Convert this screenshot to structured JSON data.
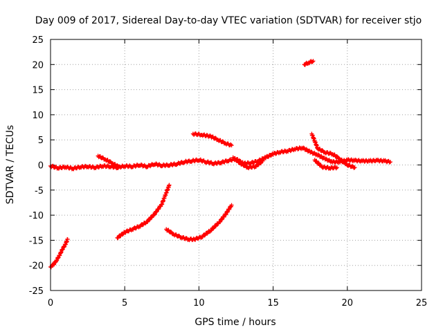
{
  "chart_data": {
    "type": "scatter",
    "title": "Day 009 of 2017, Sidereal Day-to-day VTEC variation (SDTVAR) for receiver stjo",
    "xlabel": "GPS time / hours",
    "ylabel": "SDTVAR / TECUs",
    "xlim": [
      0,
      25
    ],
    "ylim": [
      -25,
      25
    ],
    "xticks": [
      0,
      5,
      10,
      15,
      20,
      25
    ],
    "yticks": [
      -25,
      -20,
      -15,
      -10,
      -5,
      0,
      5,
      10,
      15,
      20,
      25
    ],
    "grid": true,
    "marker": "plus",
    "color": "#ff0000",
    "series": [
      {
        "points": [
          [
            0.0,
            -0.2
          ],
          [
            0.5,
            -0.6
          ],
          [
            1.0,
            -0.4
          ],
          [
            1.5,
            -0.7
          ],
          [
            2.0,
            -0.4
          ],
          [
            2.5,
            -0.3
          ],
          [
            3.0,
            -0.5
          ],
          [
            3.5,
            -0.2
          ],
          [
            4.0,
            -0.3
          ],
          [
            4.5,
            -0.5
          ],
          [
            5.0,
            -0.2
          ],
          [
            5.5,
            -0.3
          ],
          [
            6.0,
            0.0
          ],
          [
            6.5,
            -0.3
          ],
          [
            7.0,
            0.2
          ],
          [
            7.5,
            -0.1
          ],
          [
            8.0,
            0.0
          ],
          [
            8.5,
            0.2
          ],
          [
            9.0,
            0.6
          ],
          [
            9.5,
            0.8
          ],
          [
            10.0,
            1.0
          ],
          [
            10.5,
            0.6
          ],
          [
            11.0,
            0.3
          ],
          [
            11.5,
            0.5
          ],
          [
            12.0,
            0.9
          ],
          [
            12.5,
            1.2
          ],
          [
            13.0,
            0.3
          ],
          [
            13.5,
            0.4
          ],
          [
            14.0,
            0.8
          ],
          [
            14.5,
            1.5
          ],
          [
            15.0,
            2.2
          ],
          [
            15.5,
            2.6
          ],
          [
            16.0,
            2.8
          ],
          [
            16.5,
            3.2
          ],
          [
            17.0,
            3.4
          ],
          [
            17.5,
            2.6
          ],
          [
            18.0,
            2.0
          ],
          [
            18.5,
            1.2
          ],
          [
            19.0,
            0.6
          ],
          [
            19.5,
            0.6
          ],
          [
            20.0,
            1.0
          ],
          [
            20.5,
            0.9
          ],
          [
            21.0,
            0.8
          ],
          [
            21.5,
            0.8
          ],
          [
            22.0,
            0.9
          ],
          [
            22.5,
            0.8
          ],
          [
            22.9,
            0.6
          ]
        ]
      },
      {
        "points": [
          [
            0.0,
            -20.3
          ],
          [
            0.2,
            -19.8
          ],
          [
            0.4,
            -19.0
          ],
          [
            0.6,
            -18.0
          ],
          [
            0.8,
            -16.8
          ],
          [
            1.0,
            -15.8
          ],
          [
            1.15,
            -14.8
          ]
        ]
      },
      {
        "points": [
          [
            4.5,
            -14.5
          ],
          [
            5.0,
            -13.4
          ],
          [
            5.5,
            -12.8
          ],
          [
            6.0,
            -12.2
          ],
          [
            6.5,
            -11.3
          ],
          [
            7.0,
            -9.8
          ],
          [
            7.5,
            -7.8
          ],
          [
            7.8,
            -5.5
          ],
          [
            8.0,
            -4.0
          ]
        ]
      },
      {
        "points": [
          [
            7.8,
            -12.8
          ],
          [
            8.3,
            -13.8
          ],
          [
            8.8,
            -14.4
          ],
          [
            9.3,
            -14.8
          ],
          [
            9.7,
            -14.8
          ],
          [
            10.2,
            -14.3
          ],
          [
            10.8,
            -13.0
          ],
          [
            11.4,
            -11.3
          ],
          [
            11.8,
            -9.8
          ],
          [
            12.2,
            -8.0
          ]
        ]
      },
      {
        "points": [
          [
            9.6,
            6.2
          ],
          [
            10.2,
            6.0
          ],
          [
            10.8,
            5.7
          ],
          [
            11.3,
            5.0
          ],
          [
            11.8,
            4.3
          ],
          [
            12.2,
            3.9
          ]
        ]
      },
      {
        "points": [
          [
            3.2,
            1.8
          ],
          [
            3.7,
            1.1
          ],
          [
            4.2,
            0.3
          ],
          [
            4.6,
            -0.4
          ]
        ]
      },
      {
        "points": [
          [
            17.1,
            20.0
          ],
          [
            17.4,
            20.4
          ],
          [
            17.7,
            20.7
          ]
        ]
      },
      {
        "points": [
          [
            17.6,
            6.2
          ],
          [
            17.8,
            4.8
          ],
          [
            18.0,
            3.3
          ],
          [
            18.5,
            2.5
          ],
          [
            19.0,
            2.2
          ],
          [
            19.5,
            1.2
          ],
          [
            20.0,
            0.0
          ],
          [
            20.5,
            -0.5
          ]
        ]
      },
      {
        "points": [
          [
            12.3,
            1.5
          ],
          [
            12.8,
            0.3
          ],
          [
            13.3,
            -0.5
          ],
          [
            13.8,
            -0.3
          ],
          [
            14.3,
            0.8
          ]
        ]
      },
      {
        "points": [
          [
            17.8,
            1.0
          ],
          [
            18.3,
            -0.4
          ],
          [
            18.8,
            -0.6
          ],
          [
            19.3,
            -0.5
          ]
        ]
      }
    ]
  }
}
